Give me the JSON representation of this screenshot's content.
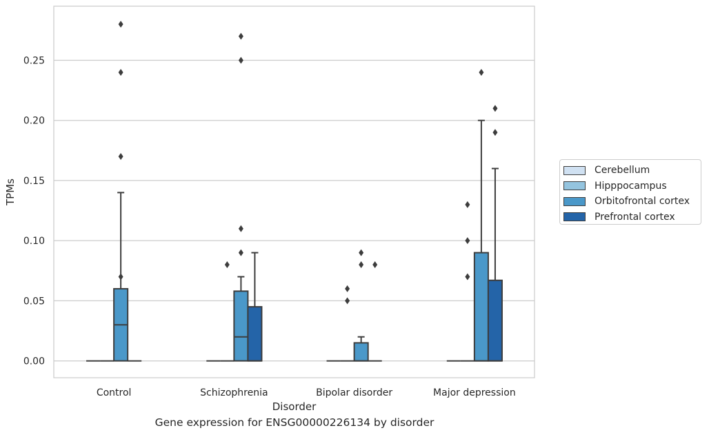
{
  "chart_data": {
    "type": "box",
    "title": "Gene expression for ENSG00000226134 by disorder",
    "xlabel": "Disorder",
    "ylabel": "TPMs",
    "ylim": [
      -0.014,
      0.295
    ],
    "y_ticks": [
      0.0,
      0.05,
      0.1,
      0.15,
      0.2,
      0.25
    ],
    "y_tick_labels": [
      "0.00",
      "0.05",
      "0.10",
      "0.15",
      "0.20",
      "0.25"
    ],
    "grid": "horizontal",
    "legend_position": "right",
    "categories": [
      "Control",
      "Schizophrenia",
      "Bipolar disorder",
      "Major depression"
    ],
    "series": [
      {
        "name": "Cerebellum",
        "color": "#d0e1f2",
        "boxes": [
          {
            "min": 0,
            "q1": 0,
            "median": 0,
            "q3": 0,
            "max": 0,
            "outliers": []
          },
          {
            "min": 0,
            "q1": 0,
            "median": 0,
            "q3": 0,
            "max": 0,
            "outliers": []
          },
          {
            "min": 0,
            "q1": 0,
            "median": 0,
            "q3": 0,
            "max": 0,
            "outliers": []
          },
          {
            "min": 0,
            "q1": 0,
            "median": 0,
            "q3": 0,
            "max": 0,
            "outliers": []
          }
        ]
      },
      {
        "name": "Hipppocampus",
        "color": "#94c4df",
        "boxes": [
          {
            "min": 0,
            "q1": 0,
            "median": 0,
            "q3": 0,
            "max": 0,
            "outliers": []
          },
          {
            "min": 0,
            "q1": 0,
            "median": 0,
            "q3": 0,
            "max": 0,
            "outliers": [
              0.08
            ]
          },
          {
            "min": 0,
            "q1": 0,
            "median": 0,
            "q3": 0,
            "max": 0,
            "outliers": [
              0.06,
              0.05
            ]
          },
          {
            "min": 0,
            "q1": 0,
            "median": 0,
            "q3": 0,
            "max": 0,
            "outliers": [
              0.13,
              0.1,
              0.07
            ]
          }
        ]
      },
      {
        "name": "Orbitofrontal cortex",
        "color": "#4a98c9",
        "boxes": [
          {
            "min": 0,
            "q1": 0,
            "median": 0.03,
            "q3": 0.06,
            "max": 0.14,
            "outliers": [
              0.28,
              0.24,
              0.17,
              0.07
            ]
          },
          {
            "min": 0,
            "q1": 0,
            "median": 0.02,
            "q3": 0.058,
            "max": 0.07,
            "outliers": [
              0.11,
              0.09,
              0.27,
              0.25
            ]
          },
          {
            "min": 0,
            "q1": 0,
            "median": 0,
            "q3": 0.015,
            "max": 0.02,
            "outliers": [
              0.09,
              0.08
            ]
          },
          {
            "min": 0,
            "q1": 0,
            "median": 0,
            "q3": 0.09,
            "max": 0.2,
            "outliers": [
              0.24
            ]
          }
        ]
      },
      {
        "name": "Prefrontal cortex",
        "color": "#2464a8",
        "boxes": [
          {
            "min": 0,
            "q1": 0,
            "median": 0,
            "q3": 0,
            "max": 0,
            "outliers": []
          },
          {
            "min": 0,
            "q1": 0,
            "median": 0,
            "q3": 0.045,
            "max": 0.09,
            "outliers": []
          },
          {
            "min": 0,
            "q1": 0,
            "median": 0,
            "q3": 0,
            "max": 0,
            "outliers": [
              0.08
            ]
          },
          {
            "min": 0,
            "q1": 0,
            "median": 0,
            "q3": 0.067,
            "max": 0.16,
            "outliers": [
              0.21,
              0.19
            ]
          }
        ]
      }
    ]
  }
}
